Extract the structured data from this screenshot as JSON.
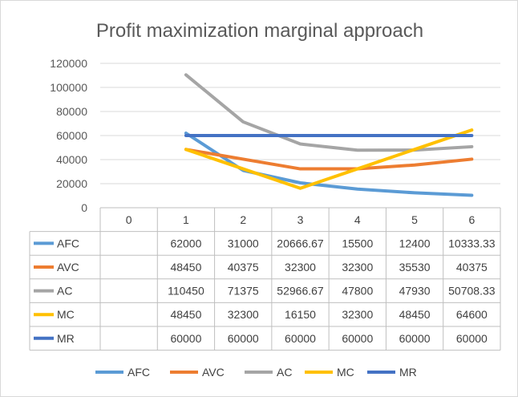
{
  "chart_data": {
    "type": "line",
    "title": "Profit maximization marginal approach",
    "categories": [
      "0",
      "1",
      "2",
      "3",
      "4",
      "5",
      "6"
    ],
    "ylim": [
      0,
      120000
    ],
    "yticks": [
      "0",
      "20000",
      "40000",
      "60000",
      "80000",
      "100000",
      "120000"
    ],
    "grid": true,
    "legend_position": "bottom",
    "series": [
      {
        "name": "AFC",
        "color": "#5b9bd5",
        "values": [
          null,
          "62000",
          "31000",
          "20666.67",
          "15500",
          "12400",
          "10333.33"
        ]
      },
      {
        "name": "AVC",
        "color": "#ed7d31",
        "values": [
          null,
          "48450",
          "40375",
          "32300",
          "32300",
          "35530",
          "40375"
        ]
      },
      {
        "name": "AC",
        "color": "#a5a5a5",
        "values": [
          null,
          "110450",
          "71375",
          "52966.67",
          "47800",
          "47930",
          "50708.33"
        ]
      },
      {
        "name": "MC",
        "color": "#ffc000",
        "values": [
          null,
          "48450",
          "32300",
          "16150",
          "32300",
          "48450",
          "64600"
        ]
      },
      {
        "name": "MR",
        "color": "#4472c4",
        "values": [
          null,
          "60000",
          "60000",
          "60000",
          "60000",
          "60000",
          "60000"
        ]
      }
    ]
  }
}
